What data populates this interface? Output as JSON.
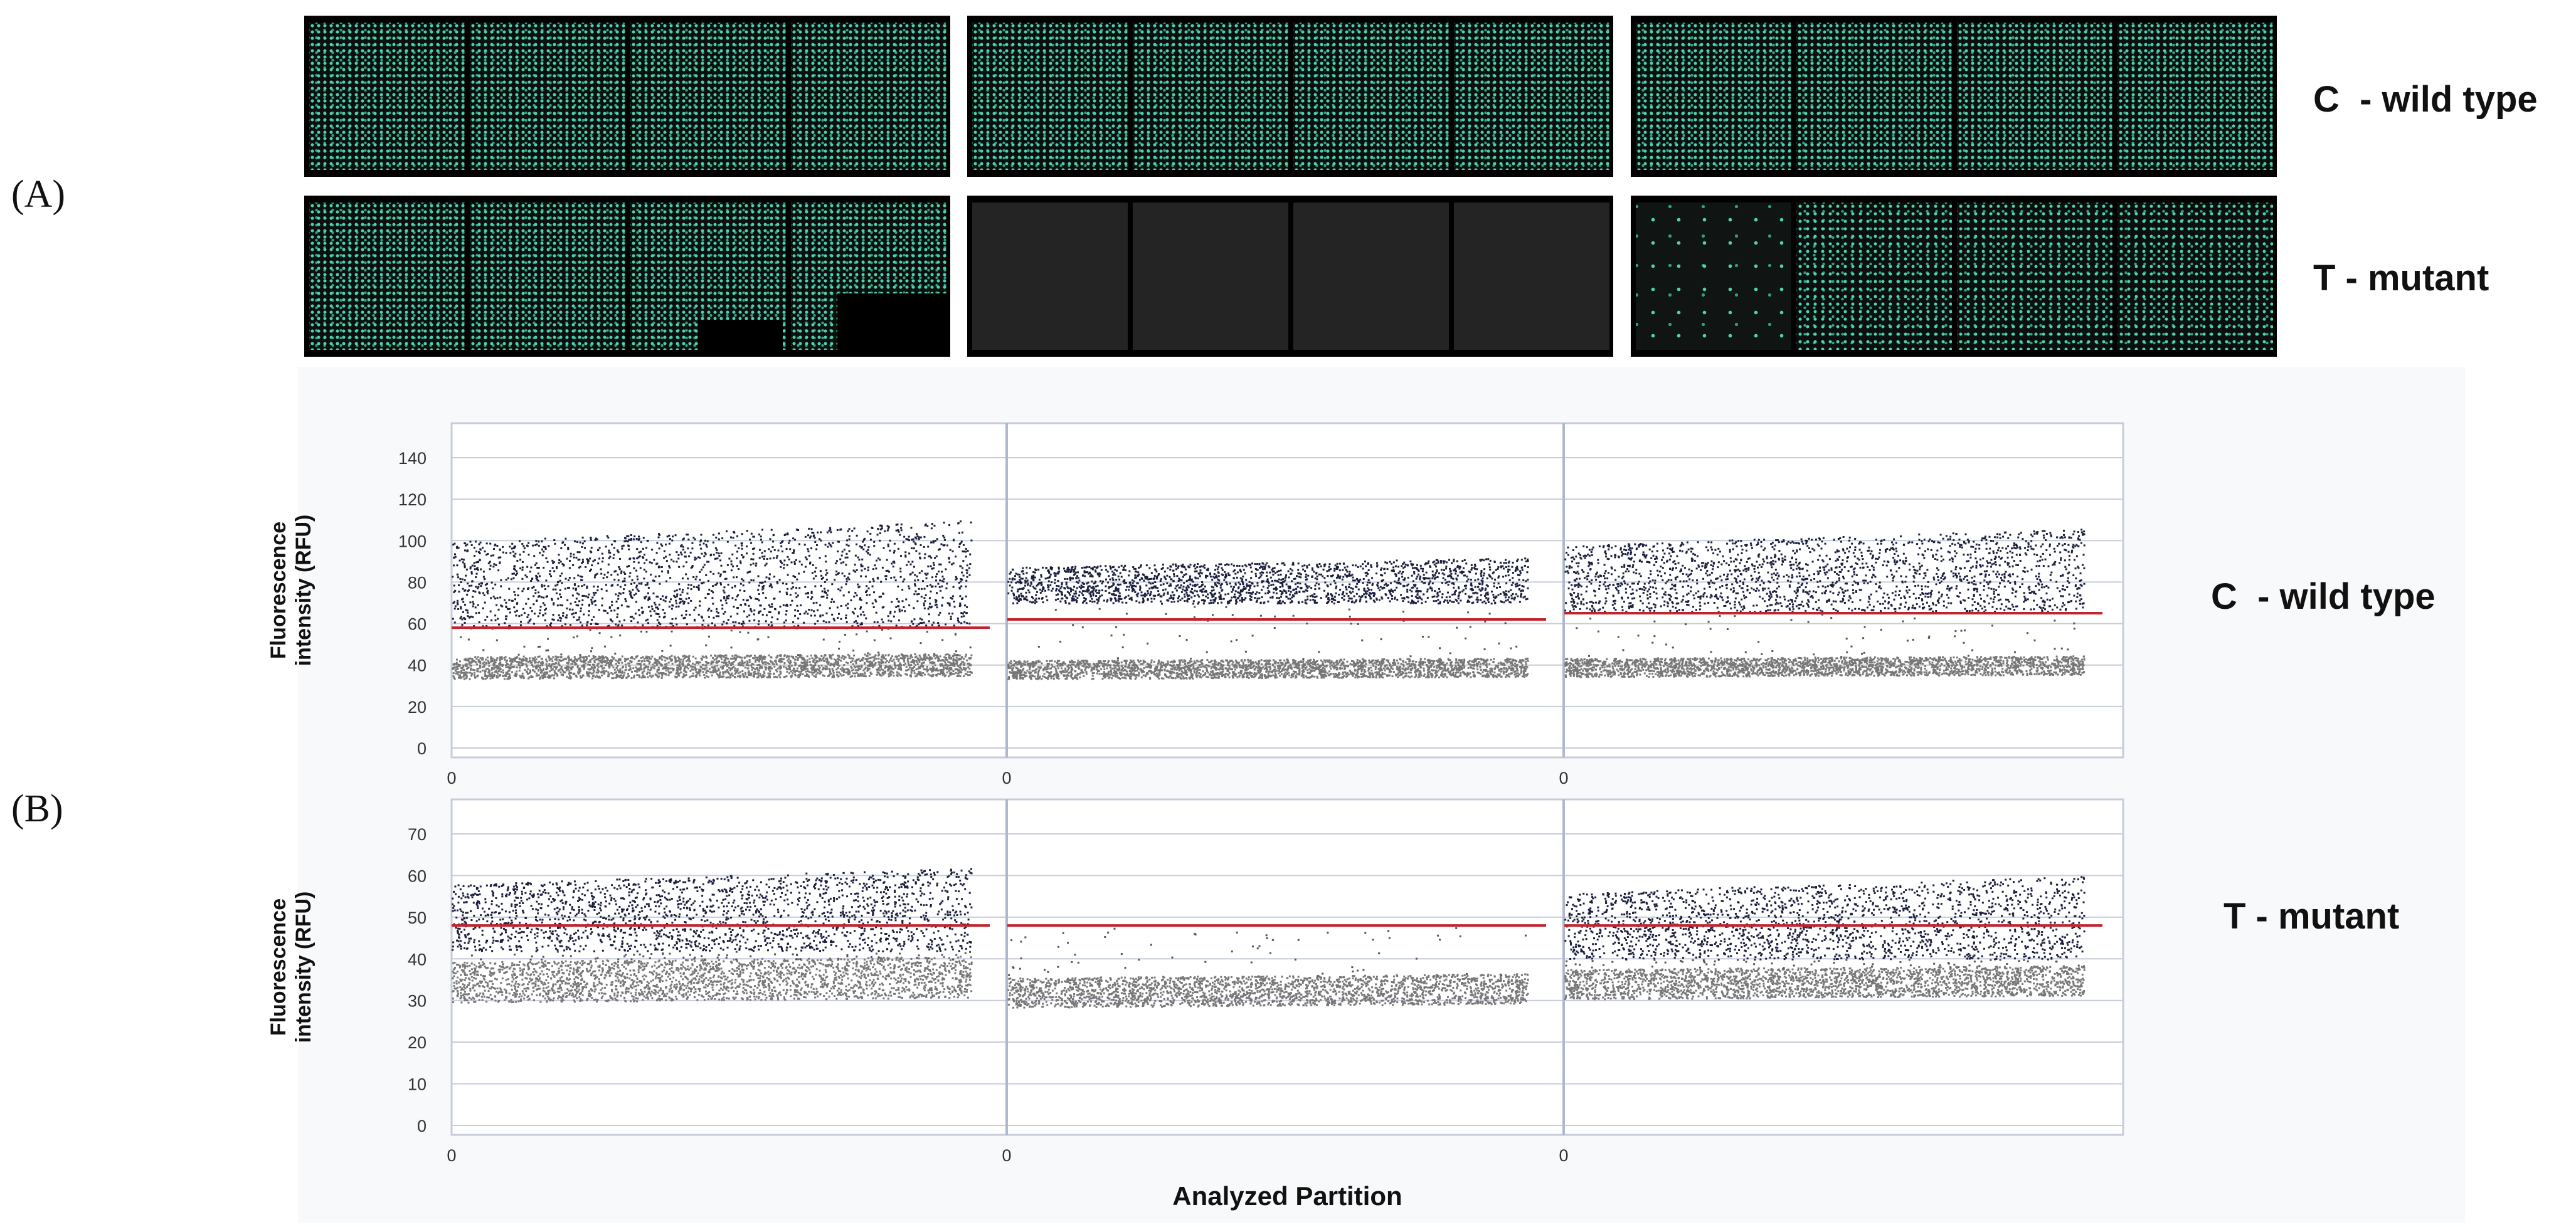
{
  "panel_letters": {
    "a": "(A)",
    "b": "(B)"
  },
  "row_labels": {
    "wild": "C  - wild type",
    "mutant": "T - mutant"
  },
  "images": {
    "row_wild": [
      [
        "pos",
        "pos",
        "pos",
        "pos"
      ],
      [
        "pos",
        "pos",
        "pos",
        "pos"
      ],
      [
        "pos",
        "pos",
        "pos",
        "pos"
      ]
    ],
    "row_mutant": [
      [
        "pos",
        "pos",
        "pos",
        "pos"
      ],
      [
        "empty",
        "empty",
        "empty",
        "empty"
      ],
      [
        "sparse",
        "mid",
        "mid",
        "mid"
      ]
    ],
    "colors": {
      "positive_dot": "#4fd1b0",
      "background": "#000000",
      "negative_tile": "#242424"
    }
  },
  "chart_data": [
    {
      "type": "scatter",
      "name_label": "C  - wild type",
      "ylabel_lines": [
        "Fluorescence",
        "intensity (RFU)"
      ],
      "xlabel": "",
      "ylim": [
        0,
        140
      ],
      "yticks": [
        0,
        20,
        40,
        60,
        80,
        100,
        120,
        140
      ],
      "grid": true,
      "x_tick_labels": [
        "0",
        "0",
        "0"
      ],
      "wells": [
        {
          "threshold": 58,
          "positive_band": [
            58,
            110
          ],
          "negative_band": [
            33,
            45
          ]
        },
        {
          "threshold": 62,
          "positive_band": [
            70,
            92
          ],
          "negative_band": [
            33,
            43
          ]
        },
        {
          "threshold": 65,
          "positive_band": [
            66,
            106
          ],
          "negative_band": [
            34,
            44
          ]
        }
      ],
      "colors": {
        "positive": "#1a1f3d",
        "negative": "#777777",
        "threshold": "#c0242f",
        "grid": "#c7ccdc"
      }
    },
    {
      "type": "scatter",
      "name_label": "T - mutant",
      "ylabel_lines": [
        "Fluorescence",
        "intensity (RFU)"
      ],
      "xlabel": "Analyzed Partition",
      "ylim": [
        0,
        70
      ],
      "yticks": [
        0,
        10,
        20,
        30,
        40,
        50,
        60,
        70
      ],
      "grid": true,
      "x_tick_labels": [
        "0",
        "0",
        "0"
      ],
      "wells": [
        {
          "threshold": 48,
          "positive_band": [
            42,
            62
          ],
          "negative_band": [
            29,
            40
          ]
        },
        {
          "threshold": 48,
          "positive_band": null,
          "negative_band": [
            28,
            36
          ]
        },
        {
          "threshold": 48,
          "positive_band": [
            40,
            60
          ],
          "negative_band": [
            30,
            38
          ]
        }
      ],
      "colors": {
        "positive": "#1a1f3d",
        "negative": "#777777",
        "threshold": "#c0242f",
        "grid": "#c7ccdc"
      }
    }
  ]
}
